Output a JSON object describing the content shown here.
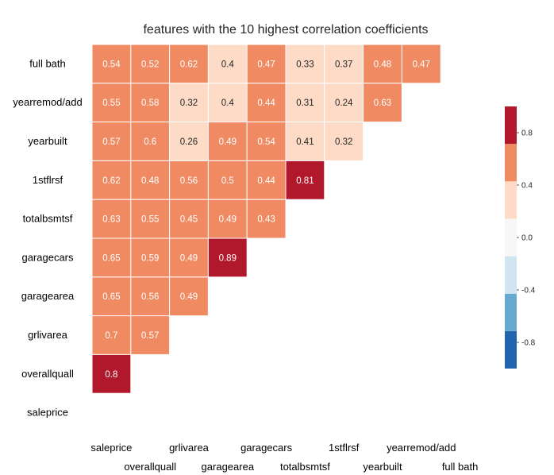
{
  "chart_data": {
    "type": "heatmap",
    "title": "features with the 10 highest correlation coefficients",
    "row_labels": [
      "full bath",
      "yearremod/add",
      "yearbuilt",
      "1stflrsf",
      "totalbsmtsf",
      "garagecars",
      "garagearea",
      "grlivarea",
      "overallquall",
      "saleprice"
    ],
    "col_labels": [
      "saleprice",
      "overallquall",
      "grlivarea",
      "garagearea",
      "garagecars",
      "totalbsmtsf",
      "1stflrsf",
      "yearbuilt",
      "yearremod/add",
      "full bath"
    ],
    "rows": [
      [
        0.54,
        0.52,
        0.62,
        0.4,
        0.47,
        0.33,
        0.37,
        0.48,
        0.47
      ],
      [
        0.55,
        0.58,
        0.32,
        0.4,
        0.44,
        0.31,
        0.24,
        0.63
      ],
      [
        0.57,
        0.6,
        0.26,
        0.49,
        0.54,
        0.41,
        0.32
      ],
      [
        0.62,
        0.48,
        0.56,
        0.5,
        0.44,
        0.81
      ],
      [
        0.63,
        0.55,
        0.45,
        0.49,
        0.43
      ],
      [
        0.65,
        0.59,
        0.49,
        0.89
      ],
      [
        0.65,
        0.56,
        0.49
      ],
      [
        0.7,
        0.57
      ],
      [
        0.8
      ],
      []
    ],
    "mask": "upper triangle including diagonal",
    "colorbar": {
      "ticks": [
        0.8,
        0.4,
        0.0,
        -0.4,
        -0.8
      ],
      "range": [
        -1,
        1
      ],
      "bins": 7,
      "colors": [
        "#2166ac",
        "#67a9cf",
        "#d1e5f0",
        "#f7f7f7",
        "#fddbc7",
        "#ef8a62",
        "#b2182b"
      ]
    },
    "cell_text_colors": {
      "light": "#ffffff",
      "dark": "#262626"
    },
    "tick_labels_x_staggered": true
  }
}
